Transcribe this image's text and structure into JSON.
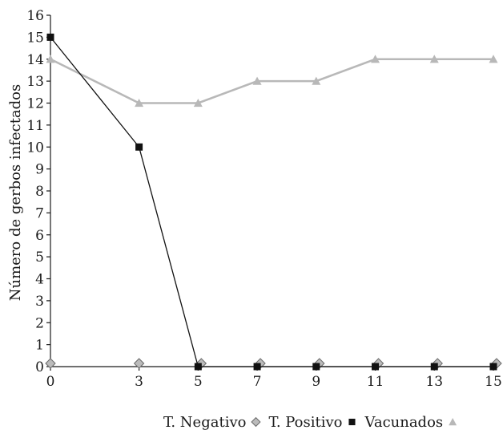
{
  "chart_data": {
    "type": "line",
    "xlabel": "",
    "ylabel": "Número de gerbos infectados",
    "x": [
      0,
      3,
      5,
      7,
      9,
      11,
      13,
      15
    ],
    "x_ticks": [
      0,
      3,
      5,
      7,
      9,
      11,
      13,
      15
    ],
    "xlim": [
      0,
      15
    ],
    "ylim": [
      0,
      16
    ],
    "y_ticks": [
      0,
      1,
      2,
      3,
      4,
      5,
      6,
      7,
      8,
      9,
      10,
      11,
      12,
      13,
      14,
      15,
      16
    ],
    "grid": false,
    "legend_placement": "bottom-center",
    "series": [
      {
        "name": "T. Negativo",
        "key": "negativo",
        "marker": "diamond",
        "line": false,
        "color": "#aaaaaa",
        "values": [
          0,
          0,
          0,
          0,
          0,
          0,
          0,
          0
        ]
      },
      {
        "name": "T. Positivo",
        "key": "positivo",
        "marker": "square",
        "line": true,
        "color": "#111111",
        "values": [
          15,
          10,
          0,
          0,
          0,
          0,
          0,
          0
        ]
      },
      {
        "name": "Vacunados",
        "key": "vacunados",
        "marker": "triangle",
        "line": true,
        "color": "#b8b8b8",
        "values": [
          14,
          12,
          12,
          13,
          13,
          14,
          14,
          14
        ]
      }
    ]
  }
}
